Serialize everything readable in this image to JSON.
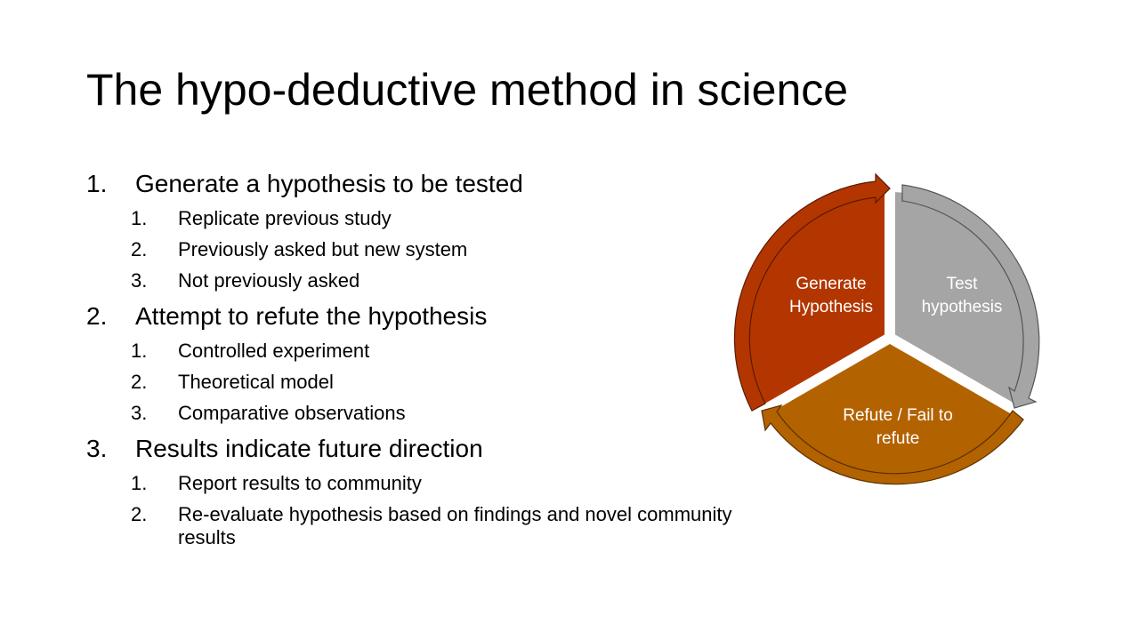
{
  "slide": {
    "title": "The hypo-deductive method in science"
  },
  "outline": [
    {
      "num": "1.",
      "text": "Generate a hypothesis to be tested",
      "sub": [
        {
          "num": "1.",
          "text": "Replicate previous study"
        },
        {
          "num": "2.",
          "text": "Previously asked but new system"
        },
        {
          "num": "3.",
          "text": "Not previously asked"
        }
      ]
    },
    {
      "num": "2.",
      "text": "Attempt to refute the hypothesis",
      "sub": [
        {
          "num": "1.",
          "text": "Controlled experiment"
        },
        {
          "num": "2.",
          "text": "Theoretical model"
        },
        {
          "num": "3.",
          "text": "Comparative observations"
        }
      ]
    },
    {
      "num": "3.",
      "text": "Results indicate future direction",
      "sub": [
        {
          "num": "1.",
          "text": "Report results to community"
        },
        {
          "num": "2.",
          "text": "Re-evaluate hypothesis based on findings and novel community results"
        }
      ]
    }
  ],
  "cycle": {
    "segments": [
      {
        "line1": "Generate",
        "line2": "Hypothesis",
        "color": "#B33600"
      },
      {
        "line1": "Test",
        "line2": "hypothesis",
        "color": "#A5A5A5"
      },
      {
        "line1": "Refute / Fail to",
        "line2": "refute",
        "color": "#B36200"
      }
    ]
  }
}
